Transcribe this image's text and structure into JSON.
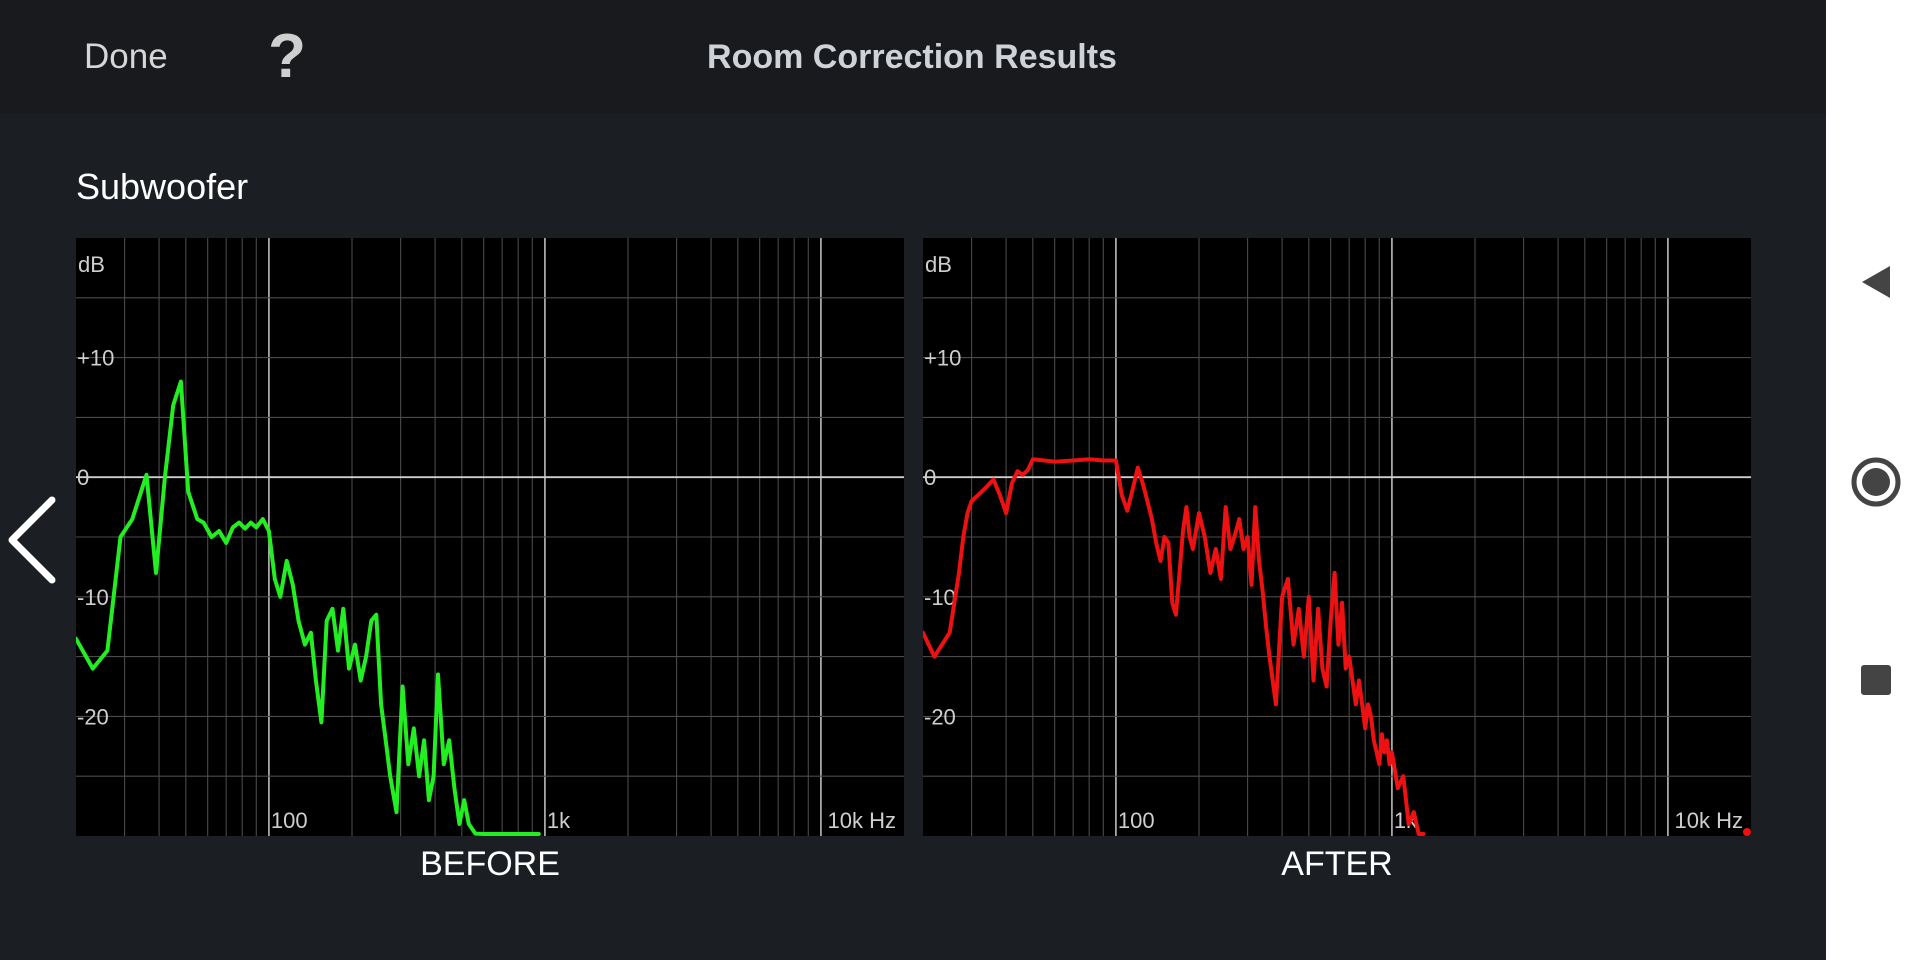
{
  "header": {
    "done_label": "Done",
    "help_label": "?",
    "title": "Room Correction Results"
  },
  "section": {
    "title": "Subwoofer"
  },
  "navigation": {
    "back_icon": "chevron-left-icon",
    "system_buttons": [
      "back-triangle-icon",
      "home-circle-icon",
      "recents-square-icon"
    ]
  },
  "colors": {
    "background": "#1b1e23",
    "before_line": "#22ee22",
    "after_line": "#ee1111",
    "plot_background": "#000000"
  },
  "chart_data": [
    {
      "type": "line",
      "caption": "BEFORE",
      "x_scale": "log",
      "xlim": [
        20,
        20000
      ],
      "ylim": [
        -30,
        20
      ],
      "ylabel": "dB",
      "xlabel": "Hz",
      "y_tick_labels": [
        {
          "value": 10,
          "label": "+10"
        },
        {
          "value": 0,
          "label": "0"
        },
        {
          "value": -10,
          "label": "-10"
        },
        {
          "value": -20,
          "label": "-20"
        }
      ],
      "x_tick_labels": [
        {
          "value": 100,
          "label": "100"
        },
        {
          "value": 1000,
          "label": "1k"
        },
        {
          "value": 10000,
          "label": "10k Hz"
        }
      ],
      "grid": true,
      "series": [
        {
          "color": "#22ee22",
          "x": [
            20,
            23,
            26,
            29,
            32,
            36,
            39,
            42,
            45,
            48,
            51,
            55,
            58,
            62,
            66,
            70,
            74,
            78,
            82,
            86,
            90,
            95,
            100,
            105,
            110,
            116,
            122,
            128,
            135,
            142,
            148,
            155,
            162,
            170,
            178,
            186,
            195,
            205,
            215,
            225,
            235,
            245,
            255,
            265,
            275,
            290,
            305,
            320,
            335,
            350,
            365,
            380,
            395,
            410,
            430,
            450,
            470,
            490,
            510,
            530,
            560,
            600,
            650,
            700,
            750,
            800,
            850,
            900,
            950
          ],
          "y": [
            -13.5,
            -16,
            -14.5,
            -5,
            -3.5,
            0.2,
            -8,
            0,
            6,
            8,
            -1.2,
            -3.5,
            -3.8,
            -5,
            -4.5,
            -5.5,
            -4.2,
            -3.8,
            -4.3,
            -3.8,
            -4.2,
            -3.5,
            -4.5,
            -8.5,
            -10,
            -7,
            -9,
            -12,
            -14,
            -13,
            -17,
            -20.5,
            -12,
            -11,
            -14.5,
            -11,
            -16,
            -14,
            -17,
            -15,
            -12,
            -11.5,
            -19,
            -22,
            -25,
            -28,
            -17.5,
            -24,
            -21,
            -25,
            -22,
            -27,
            -25,
            -16.5,
            -24,
            -22,
            -26,
            -29,
            -27,
            -29,
            -29.8,
            -30,
            -30,
            -30,
            -30,
            -30,
            -30,
            -30,
            -30
          ]
        }
      ]
    },
    {
      "type": "line",
      "caption": "AFTER",
      "x_scale": "log",
      "xlim": [
        20,
        20000
      ],
      "ylim": [
        -30,
        20
      ],
      "ylabel": "dB",
      "xlabel": "Hz",
      "y_tick_labels": [
        {
          "value": 10,
          "label": "+10"
        },
        {
          "value": 0,
          "label": "0"
        },
        {
          "value": -10,
          "label": "-10"
        },
        {
          "value": -20,
          "label": "-20"
        }
      ],
      "x_tick_labels": [
        {
          "value": 100,
          "label": "100"
        },
        {
          "value": 1000,
          "label": "1k"
        },
        {
          "value": 10000,
          "label": "10k Hz"
        }
      ],
      "grid": true,
      "series": [
        {
          "color": "#ee1111",
          "x": [
            20,
            22,
            25,
            27,
            28,
            29,
            30,
            31,
            32,
            33,
            34,
            35,
            36,
            38,
            40,
            42,
            44,
            46,
            48,
            50,
            55,
            60,
            70,
            80,
            90,
            100,
            105,
            110,
            115,
            120,
            125,
            130,
            135,
            140,
            145,
            150,
            155,
            160,
            165,
            170,
            175,
            180,
            185,
            190,
            200,
            210,
            220,
            230,
            240,
            250,
            260,
            270,
            280,
            290,
            300,
            310,
            320,
            330,
            340,
            350,
            360,
            380,
            400,
            420,
            440,
            460,
            480,
            500,
            520,
            540,
            560,
            580,
            600,
            620,
            640,
            660,
            680,
            700,
            720,
            740,
            760,
            780,
            800,
            820,
            840,
            860,
            880,
            900,
            920,
            940,
            960,
            980,
            1000,
            1050,
            1100,
            1150,
            1200,
            1250,
            1300
          ],
          "y": [
            -13,
            -15,
            -13,
            -8,
            -5,
            -3,
            -2,
            -1.7,
            -1.4,
            -1.1,
            -0.8,
            -0.5,
            -0.2,
            -1.5,
            -3,
            -0.5,
            0.5,
            0.2,
            0.6,
            1.5,
            1.4,
            1.3,
            1.4,
            1.5,
            1.4,
            1.4,
            -1.5,
            -2.8,
            -1,
            0.8,
            -0.5,
            -2,
            -3.5,
            -5.5,
            -7,
            -5,
            -5.5,
            -10.5,
            -11.5,
            -8,
            -4.5,
            -2.5,
            -5,
            -6,
            -3,
            -5,
            -8,
            -6,
            -8.5,
            -2.5,
            -6,
            -4.8,
            -3.5,
            -6,
            -5,
            -9,
            -2.5,
            -7,
            -9.5,
            -12.5,
            -15,
            -19,
            -10,
            -8.5,
            -14,
            -11,
            -15,
            -10,
            -17,
            -11,
            -16,
            -17.5,
            -12,
            -8,
            -14,
            -10.5,
            -16,
            -15,
            -17,
            -19,
            -17,
            -19,
            -21,
            -19,
            -20,
            -22,
            -23,
            -24,
            -21.5,
            -23,
            -22,
            -24,
            -23,
            -26,
            -25,
            -29,
            -28,
            -30,
            -30
          ]
        }
      ]
    }
  ]
}
